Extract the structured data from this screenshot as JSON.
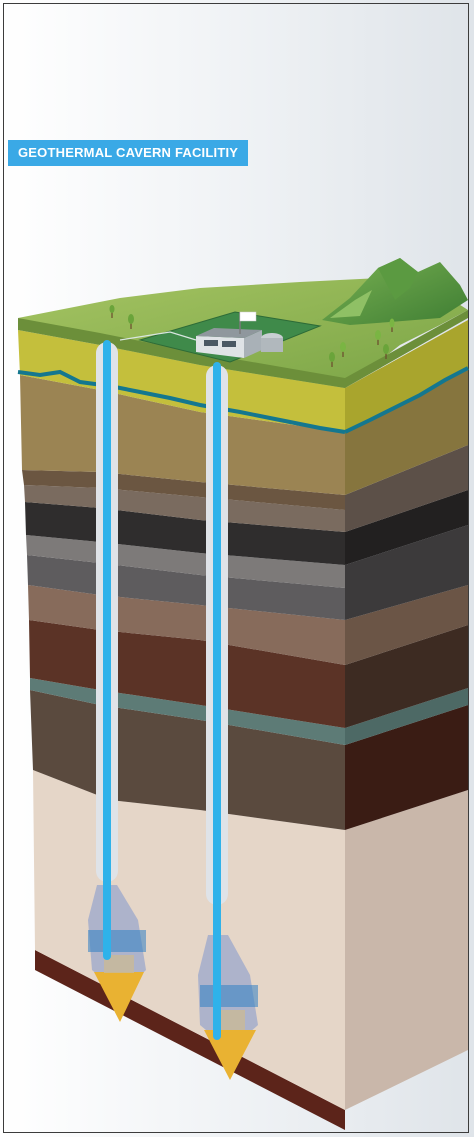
{
  "title": "GEOTHERMAL CAVERN FACILITIY",
  "colors": {
    "badge": "#3aa9e6",
    "pipe": "#2fb2ea",
    "casing": "#dfe3e8",
    "groundwater": "#14778f",
    "cavern_fill": "#e9b232"
  },
  "diagram": {
    "wells": 2,
    "facility": "surface geothermal plant with flag",
    "terrain": "green hills with trees"
  }
}
